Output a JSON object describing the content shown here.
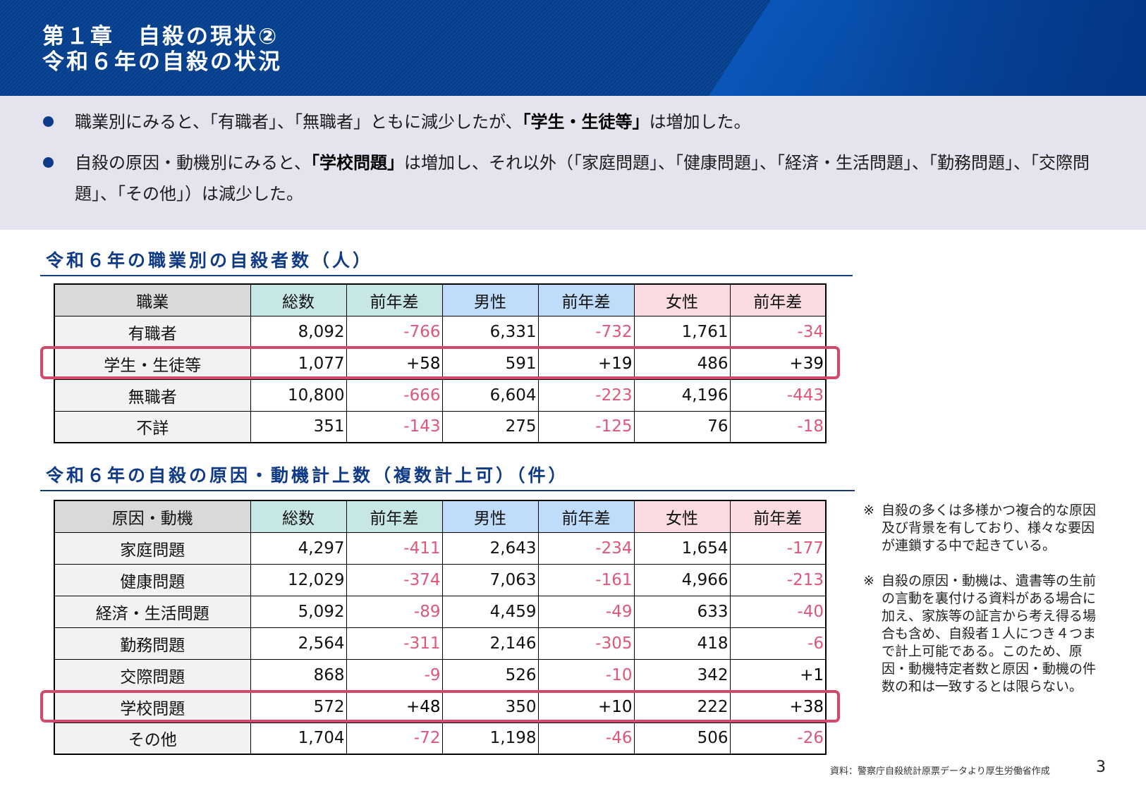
{
  "header": {
    "line1": "第１章　自殺の現状②",
    "line2": "令和６年の自殺の状況"
  },
  "summary": {
    "bullets": [
      {
        "pre": "職業別にみると、「有職者」、「無職者」ともに減少したが、",
        "bold": "「学生・生徒等」",
        "post": "は増加した。"
      },
      {
        "pre": "自殺の原因・動機別にみると、",
        "bold": "「学校問題」",
        "post": "は増加し、それ以外（「家庭問題」、「健康問題」、「経済・生活問題」、「勤務問題」、「交際問題」、「その他」）は減少した。"
      }
    ]
  },
  "colors": {
    "header_bg": "#04408f",
    "summary_bg": "#e4e3ee",
    "title_blue": "#0f3a86",
    "negative": "#e0567a",
    "highlight": "#d6486b",
    "col_label": "#d9d9d9",
    "col_total": "#c7e6e6",
    "col_male": "#bfdcfa",
    "col_female": "#fadbe2"
  },
  "table1": {
    "title": "令和６年の職業別の自殺者数（人）",
    "headers": [
      "職業",
      "総数",
      "前年差",
      "男性",
      "前年差",
      "女性",
      "前年差"
    ],
    "rows": [
      [
        "有職者",
        "8,092",
        "-766",
        "6,331",
        "-732",
        "1,761",
        "-34"
      ],
      [
        "学生・生徒等",
        "1,077",
        "+58",
        "591",
        "+19",
        "486",
        "+39"
      ],
      [
        "無職者",
        "10,800",
        "-666",
        "6,604",
        "-223",
        "4,196",
        "-443"
      ],
      [
        "不詳",
        "351",
        "-143",
        "275",
        "-125",
        "76",
        "-18"
      ]
    ],
    "highlighted_row": "学生・生徒等"
  },
  "table2": {
    "title": "令和６年の自殺の原因・動機計上数（複数計上可）（件）",
    "headers": [
      "原因・動機",
      "総数",
      "前年差",
      "男性",
      "前年差",
      "女性",
      "前年差"
    ],
    "rows": [
      [
        "家庭問題",
        "4,297",
        "-411",
        "2,643",
        "-234",
        "1,654",
        "-177"
      ],
      [
        "健康問題",
        "12,029",
        "-374",
        "7,063",
        "-161",
        "4,966",
        "-213"
      ],
      [
        "経済・生活問題",
        "5,092",
        "-89",
        "4,459",
        "-49",
        "633",
        "-40"
      ],
      [
        "勤務問題",
        "2,564",
        "-311",
        "2,146",
        "-305",
        "418",
        "-6"
      ],
      [
        "交際問題",
        "868",
        "-9",
        "526",
        "-10",
        "342",
        "+1"
      ],
      [
        "学校問題",
        "572",
        "+48",
        "350",
        "+10",
        "222",
        "+38"
      ],
      [
        "その他",
        "1,704",
        "-72",
        "1,198",
        "-46",
        "506",
        "-26"
      ]
    ],
    "highlighted_row": "学校問題"
  },
  "notes": [
    {
      "mark": "※",
      "text": "自殺の多くは多様かつ複合的な原因及び背景を有しており、様々な要因が連鎖する中で起きている。"
    },
    {
      "mark": "※",
      "text": "自殺の原因・動機は、遺書等の生前の言動を裏付ける資料がある場合に加え、家族等の証言から考え得る場合も含め、自殺者１人につき４つまで計上可能である。このため、原因・動機特定者数と原因・動機の件数の和は一致するとは限らない。"
    }
  ],
  "footer": {
    "source": "資料：警察庁自殺統計原票データより厚生労働省作成",
    "page": "3"
  }
}
